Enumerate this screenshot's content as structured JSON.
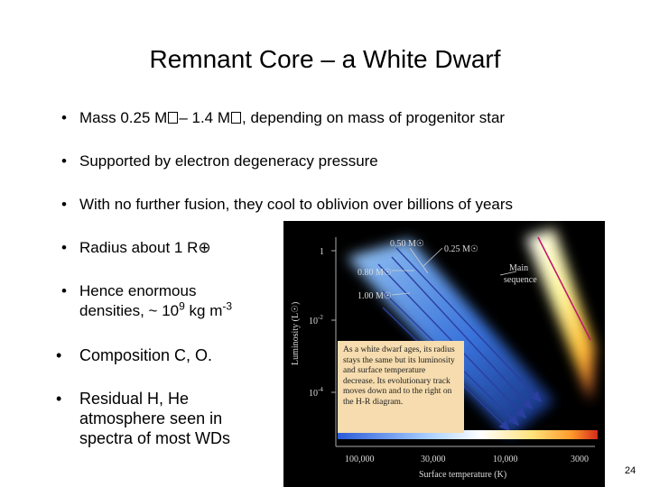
{
  "slide": {
    "title": "Remnant Core – a White Dwarf",
    "bullets": [
      {
        "pre": "Mass 0.25 M",
        "mid": "– 1.4 M",
        "post": ", depending on mass of progenitor star"
      },
      {
        "text": "Supported by electron degeneracy pressure"
      },
      {
        "text": "With no further fusion, they cool to oblivion over billions of years"
      },
      {
        "pre": "Radius about 1 R",
        "symbol": "⊕"
      },
      {
        "line1": "Hence enormous",
        "line2_pre": "densities, ~ 10",
        "exp": "9",
        "line2_mid": " kg m",
        "exp2": "-3"
      },
      {
        "text": "Composition C, O."
      },
      {
        "line1": "Residual H, He",
        "line2": "atmosphere seen in",
        "line3": "spectra of most WDs"
      }
    ],
    "bullet_glyph": "•",
    "page_number": "24"
  },
  "figure": {
    "y_axis_label": "Luminosity (L☉)",
    "y_ticks": [
      "1",
      "10",
      "10"
    ],
    "y_tick_exps": [
      "",
      "-2",
      "-4"
    ],
    "x_axis_label": "Surface temperature (K)",
    "x_ticks": [
      "100,000",
      "30,000",
      "10,000",
      "3000"
    ],
    "track_labels": [
      "0.50 M☉",
      "0.25 M☉",
      "0.80 M☉",
      "1.00 M☉"
    ],
    "main_sequence_label_1": "Main",
    "main_sequence_label_2": "sequence",
    "caption": "As a white dwarf ages, its radius stays the same but its luminosity and surface temperature decrease. Its evolutionary track moves down and to the right on the H-R diagram."
  }
}
